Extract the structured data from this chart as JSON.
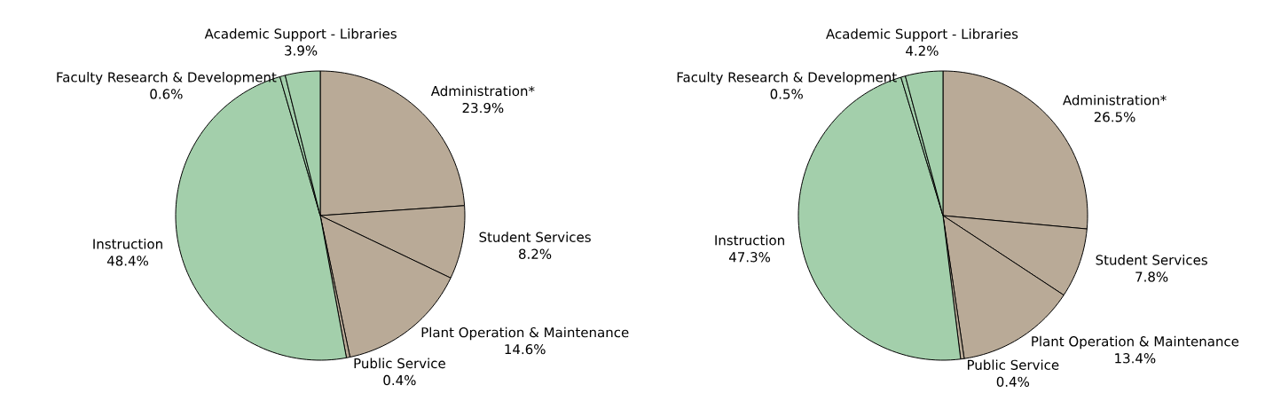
{
  "chart_data": [
    {
      "type": "pie",
      "categories": [
        "Administration*",
        "Student Services",
        "Plant Operation & Maintenance",
        "Public Service",
        "Instruction",
        "Faculty Research & Development",
        "Academic Support - Libraries"
      ],
      "values": [
        23.9,
        8.2,
        14.6,
        0.4,
        48.4,
        0.6,
        3.9
      ],
      "value_labels": [
        "23.9%",
        "8.2%",
        "14.6%",
        "0.4%",
        "48.4%",
        "0.6%",
        "3.9%"
      ],
      "colors": [
        "#b9aa97",
        "#b9aa97",
        "#b9aa97",
        "#b9aa97",
        "#a3cfab",
        "#a3cfab",
        "#a3cfab"
      ]
    },
    {
      "type": "pie",
      "categories": [
        "Administration*",
        "Student Services",
        "Plant Operation & Maintenance",
        "Public Service",
        "Instruction",
        "Faculty Research & Development",
        "Academic Support - Libraries"
      ],
      "values": [
        26.5,
        7.8,
        13.4,
        0.4,
        47.3,
        0.5,
        4.2
      ],
      "value_labels": [
        "26.5%",
        "7.8%",
        "13.4%",
        "0.4%",
        "47.3%",
        "0.5%",
        "4.2%"
      ],
      "colors": [
        "#b9aa97",
        "#b9aa97",
        "#b9aa97",
        "#b9aa97",
        "#a3cfab",
        "#a3cfab",
        "#a3cfab"
      ]
    }
  ]
}
